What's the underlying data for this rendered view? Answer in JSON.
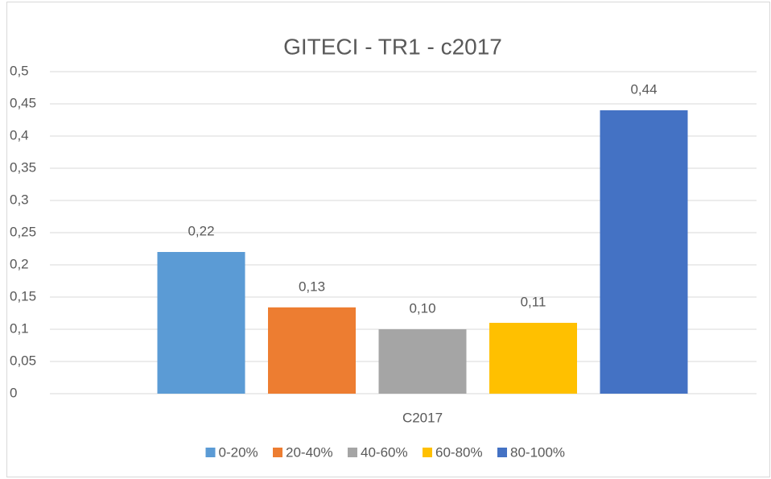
{
  "chart_data": {
    "type": "bar",
    "title": "GITECI - TR1 - c2017",
    "categories": [
      "C2017"
    ],
    "series": [
      {
        "name": "0-20%",
        "color": "#5b9bd5",
        "values": [
          0.22
        ],
        "value_labels": [
          "0,22"
        ]
      },
      {
        "name": "20-40%",
        "color": "#ed7d31",
        "values": [
          0.134
        ],
        "value_labels": [
          "0,13"
        ]
      },
      {
        "name": "40-60%",
        "color": "#a5a5a5",
        "values": [
          0.1
        ],
        "value_labels": [
          "0,10"
        ]
      },
      {
        "name": "60-80%",
        "color": "#ffc000",
        "values": [
          0.11
        ],
        "value_labels": [
          "0,11"
        ]
      },
      {
        "name": "80-100%",
        "color": "#4472c4",
        "values": [
          0.44
        ],
        "value_labels": [
          "0,44"
        ]
      }
    ],
    "ylim": [
      0,
      0.5
    ],
    "yticks": [
      0,
      {
        "value": 0.05,
        "label": "0,05"
      },
      {
        "value": 0.1,
        "label": "0,1"
      },
      {
        "value": 0.15,
        "label": "0,15"
      },
      {
        "value": 0.2,
        "label": "0,2"
      },
      {
        "value": 0.25,
        "label": "0,25"
      },
      {
        "value": 0.3,
        "label": "0,3"
      },
      {
        "value": 0.35,
        "label": "0,35"
      },
      {
        "value": 0.4,
        "label": "0,4"
      },
      {
        "value": 0.45,
        "label": "0,45"
      },
      {
        "value": 0.5,
        "label": "0,5"
      }
    ],
    "grid": true,
    "legend": "bottom"
  }
}
